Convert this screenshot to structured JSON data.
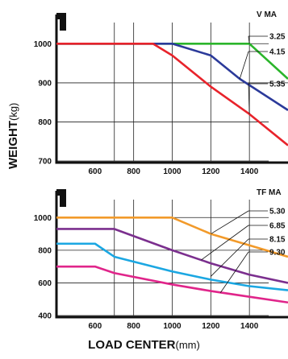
{
  "y_axis": {
    "title": "WEIGHT",
    "unit": "(kg)"
  },
  "x_axis": {
    "title": "LOAD CENTER",
    "unit": "(mm)"
  },
  "chart_data": [
    {
      "type": "line",
      "title": "V MA",
      "xlabel": "LOAD CENTER(mm)",
      "ylabel": "WEIGHT(kg)",
      "xlim": [
        400,
        1600
      ],
      "ylim": [
        700,
        1050
      ],
      "x_ticks": [
        600,
        800,
        1000,
        1200,
        1400
      ],
      "y_ticks": [
        700,
        800,
        900,
        1000
      ],
      "series": [
        {
          "name": "3.25",
          "color": "#2bb52b",
          "x": [
            400,
            1000,
            1400,
            1600
          ],
          "y": [
            1000,
            1000,
            1000,
            910
          ]
        },
        {
          "name": "4.15",
          "color": "#2b3a9a",
          "x": [
            400,
            1000,
            1200,
            1350,
            1600
          ],
          "y": [
            1000,
            1000,
            970,
            910,
            830
          ]
        },
        {
          "name": "5.35",
          "color": "#e8232b",
          "x": [
            400,
            900,
            1000,
            1200,
            1400,
            1600
          ],
          "y": [
            1000,
            1000,
            970,
            890,
            820,
            740
          ]
        }
      ]
    },
    {
      "type": "line",
      "title": "TF MA",
      "xlabel": "LOAD CENTER(mm)",
      "ylabel": "WEIGHT(kg)",
      "xlim": [
        400,
        1600
      ],
      "ylim": [
        400,
        1100
      ],
      "x_ticks": [
        600,
        800,
        1000,
        1200,
        1400
      ],
      "y_ticks": [
        400,
        600,
        800,
        1000
      ],
      "series": [
        {
          "name": "5.30",
          "color": "#f29a2a",
          "x": [
            400,
            1000,
            1200,
            1400,
            1600
          ],
          "y": [
            1000,
            1000,
            900,
            830,
            760
          ]
        },
        {
          "name": "6.85",
          "color": "#7b2f8e",
          "x": [
            400,
            700,
            1000,
            1200,
            1400,
            1600
          ],
          "y": [
            930,
            930,
            800,
            720,
            650,
            600
          ]
        },
        {
          "name": "8.15",
          "color": "#1ba7e2",
          "x": [
            400,
            600,
            700,
            1000,
            1200,
            1400,
            1600
          ],
          "y": [
            840,
            840,
            760,
            670,
            620,
            580,
            555
          ]
        },
        {
          "name": "9.30",
          "color": "#e0258a",
          "x": [
            400,
            600,
            700,
            1000,
            1200,
            1400,
            1600
          ],
          "y": [
            700,
            700,
            660,
            590,
            550,
            515,
            480
          ]
        }
      ]
    }
  ]
}
